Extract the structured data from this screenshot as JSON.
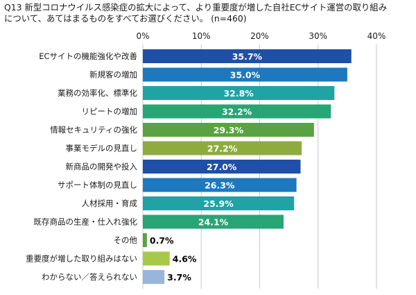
{
  "question": "Q13 新型コロナウイルス感染症の拡大によって、より重要度が増した自社ECサイト運営の取り組み\nについて、あてはまるものをすべてお選びください。 (n=460)",
  "chart_data": {
    "type": "bar",
    "orientation": "horizontal",
    "title": "",
    "xlabel": "",
    "ylabel": "",
    "xlim": [
      0,
      40
    ],
    "ticks": [
      0,
      10,
      20,
      30,
      40
    ],
    "tick_labels": [
      "0%",
      "10%",
      "20%",
      "30%",
      "40%"
    ],
    "axis_position": "top",
    "grid": true,
    "legend": false,
    "categories": [
      "ECサイトの機能強化や改善",
      "新規客の増加",
      "業務の効率化、標準化",
      "リピートの増加",
      "情報セキュリティの強化",
      "事業モデルの見直し",
      "新商品の開発や投入",
      "サポート体制の見直し",
      "人材採用・育成",
      "既存商品の生産・仕入れ強化",
      "その他",
      "重要度が増した取り組みはない",
      "わからない／答えられない"
    ],
    "values": [
      35.7,
      35.0,
      32.8,
      32.2,
      29.3,
      27.2,
      27.0,
      26.3,
      25.9,
      24.1,
      0.7,
      4.6,
      3.7
    ],
    "value_labels": [
      "35.7%",
      "35.0%",
      "32.8%",
      "32.2%",
      "29.3%",
      "27.2%",
      "27.0%",
      "26.3%",
      "25.9%",
      "24.1%",
      "0.7%",
      "4.6%",
      "3.7%"
    ],
    "colors": [
      "#1f4fa6",
      "#1d78bd",
      "#1fa3a5",
      "#27a575",
      "#5aa342",
      "#8fab3f",
      "#1f4fa6",
      "#1d78bd",
      "#1fa3a5",
      "#27a575",
      "#5aa342",
      "#a7c94a",
      "#98b6dc"
    ],
    "label_colors": [
      "#ffffff",
      "#ffffff",
      "#ffffff",
      "#ffffff",
      "#ffffff",
      "#ffffff",
      "#ffffff",
      "#ffffff",
      "#ffffff",
      "#ffffff",
      "#000000",
      "#000000",
      "#000000"
    ],
    "gridline_color": "#c8c8c8"
  }
}
